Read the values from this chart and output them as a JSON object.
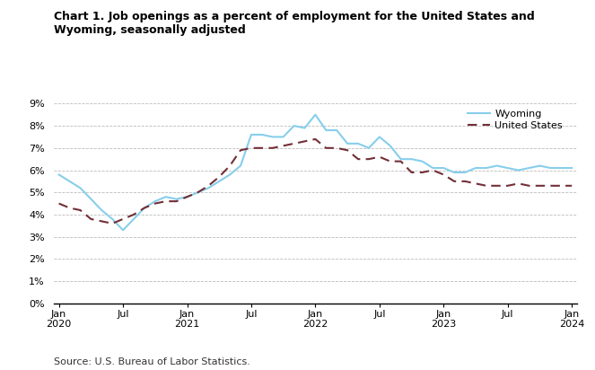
{
  "title_line1": "Chart 1. Job openings as a percent of employment for the United States and",
  "title_line2": "Wyoming, seasonally adjusted",
  "source": "Source: U.S. Bureau of Labor Statistics.",
  "wyoming": [
    5.8,
    5.5,
    5.2,
    4.7,
    4.2,
    3.8,
    3.3,
    3.8,
    4.3,
    4.6,
    4.8,
    4.7,
    4.8,
    5.0,
    5.2,
    5.5,
    5.8,
    6.2,
    7.6,
    7.6,
    7.5,
    7.5,
    8.0,
    7.9,
    8.5,
    7.8,
    7.8,
    7.2,
    7.2,
    7.0,
    7.5,
    7.1,
    6.5,
    6.5,
    6.4,
    6.1,
    6.1,
    5.9,
    5.9,
    6.1,
    6.1,
    6.2,
    6.1,
    6.0,
    6.1,
    6.2,
    6.1,
    6.1,
    6.1
  ],
  "us": [
    4.5,
    4.3,
    4.2,
    3.8,
    3.7,
    3.6,
    3.8,
    4.0,
    4.3,
    4.5,
    4.6,
    4.6,
    4.8,
    5.0,
    5.3,
    5.7,
    6.2,
    6.9,
    7.0,
    7.0,
    7.0,
    7.1,
    7.2,
    7.3,
    7.4,
    7.0,
    7.0,
    6.9,
    6.5,
    6.5,
    6.6,
    6.4,
    6.4,
    5.9,
    5.9,
    6.0,
    5.8,
    5.5,
    5.5,
    5.4,
    5.3,
    5.3,
    5.3,
    5.4,
    5.3,
    5.3,
    5.3,
    5.3,
    5.3
  ],
  "wyoming_color": "#87CEEB",
  "us_color": "#722F37",
  "ylim": [
    0,
    9
  ],
  "yticks": [
    0,
    1,
    2,
    3,
    4,
    5,
    6,
    7,
    8,
    9
  ],
  "xtick_labels": [
    "Jan\n2020",
    "Jul",
    "Jan\n2021",
    "Jul",
    "Jan\n2022",
    "Jul",
    "Jan\n2023",
    "Jul",
    "Jan\n2024"
  ],
  "xtick_positions": [
    0,
    6,
    12,
    18,
    24,
    30,
    36,
    42,
    48
  ]
}
